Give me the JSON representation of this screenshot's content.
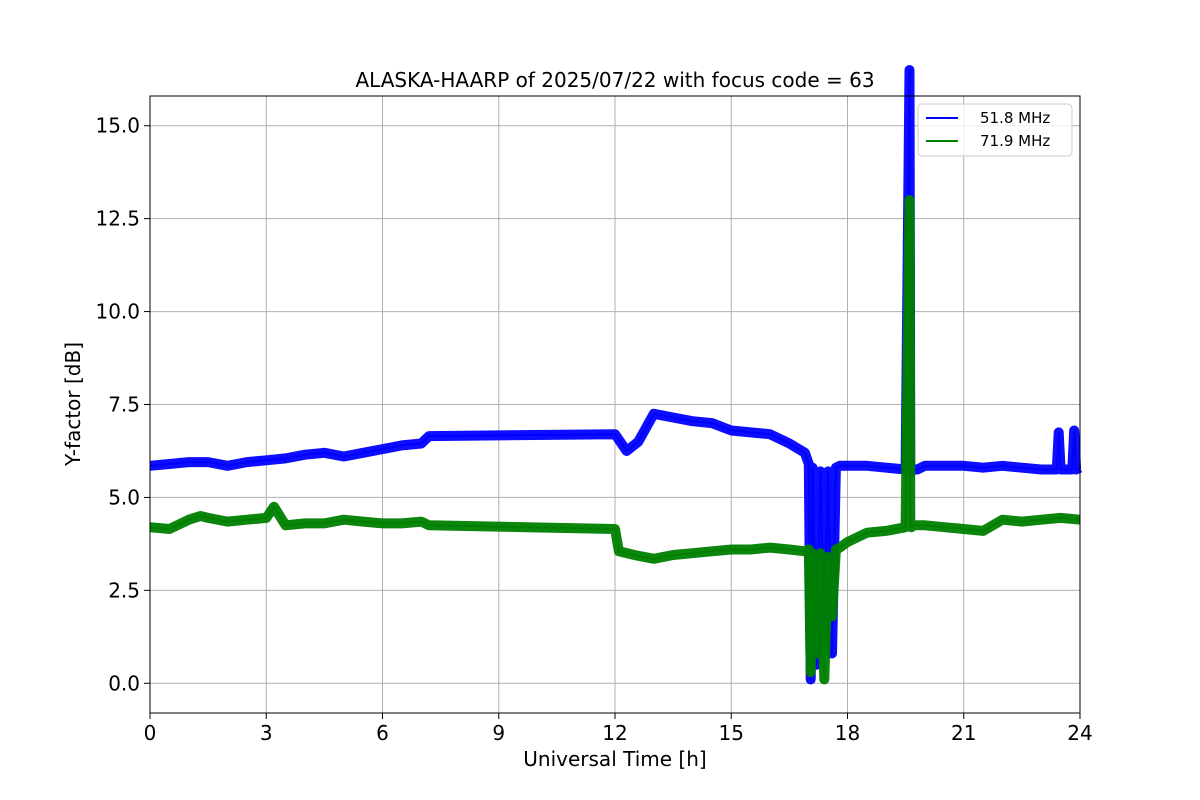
{
  "chart_data": {
    "type": "line",
    "title": "ALASKA-HAARP of 2025/07/22 with focus code = 63",
    "xlabel": "Universal Time [h]",
    "ylabel": "Y-factor [dB]",
    "xlim": [
      0,
      24
    ],
    "ylim": [
      -0.8,
      15.8
    ],
    "xticks": [
      0,
      3,
      6,
      9,
      12,
      15,
      18,
      21,
      24
    ],
    "xtick_labels": [
      "0",
      "3",
      "6",
      "9",
      "12",
      "15",
      "18",
      "21",
      "24"
    ],
    "yticks": [
      0,
      2.5,
      5,
      7.5,
      10,
      12.5,
      15
    ],
    "ytick_labels": [
      "0.0",
      "2.5",
      "5.0",
      "7.5",
      "10.0",
      "12.5",
      "15.0"
    ],
    "grid": true,
    "legend_position": "top-right",
    "series": [
      {
        "name": "51.8 MHz",
        "color": "#0000ff",
        "x": [
          0,
          0.5,
          1,
          1.5,
          2,
          2.5,
          3,
          3.5,
          4,
          4.5,
          5,
          5.5,
          6,
          6.5,
          7,
          7.2,
          12.0,
          12.3,
          12.6,
          13.0,
          13.5,
          14.0,
          14.5,
          15.0,
          15.5,
          16.0,
          16.5,
          16.9,
          17.0,
          17.05,
          17.1,
          17.2,
          17.3,
          17.4,
          17.5,
          17.6,
          17.7,
          17.8,
          18.0,
          18.5,
          19.0,
          19.5,
          19.6,
          19.62,
          19.65,
          19.7,
          19.8,
          20.0,
          20.5,
          21.0,
          21.5,
          22.0,
          22.5,
          23.0,
          23.4,
          23.45,
          23.5,
          23.8,
          23.85,
          23.9,
          24.0
        ],
        "y": [
          5.85,
          5.9,
          5.95,
          5.95,
          5.85,
          5.95,
          6.0,
          6.05,
          6.15,
          6.2,
          6.1,
          6.2,
          6.3,
          6.4,
          6.45,
          6.65,
          6.7,
          6.25,
          6.5,
          7.25,
          7.15,
          7.05,
          7.0,
          6.8,
          6.75,
          6.7,
          6.45,
          6.2,
          5.9,
          0.1,
          5.8,
          0.5,
          5.7,
          1.2,
          5.7,
          0.8,
          5.8,
          5.85,
          5.85,
          5.85,
          5.8,
          5.75,
          16.5,
          5.9,
          5.7,
          5.75,
          5.75,
          5.85,
          5.85,
          5.85,
          5.8,
          5.85,
          5.8,
          5.75,
          5.75,
          6.75,
          5.75,
          5.75,
          6.8,
          5.75,
          5.8
        ]
      },
      {
        "name": "71.9 MHz",
        "color": "#008000",
        "x": [
          0,
          0.5,
          1,
          1.3,
          1.5,
          2,
          2.5,
          3,
          3.2,
          3.5,
          4,
          4.5,
          5,
          5.5,
          6,
          6.5,
          7,
          7.2,
          12.0,
          12.1,
          12.5,
          13.0,
          13.5,
          14.0,
          14.5,
          15.0,
          15.5,
          16.0,
          16.5,
          16.9,
          17.0,
          17.05,
          17.1,
          17.2,
          17.3,
          17.4,
          17.5,
          17.6,
          17.7,
          17.8,
          18.0,
          18.5,
          19.0,
          19.5,
          19.6,
          19.62,
          19.65,
          19.7,
          20.0,
          20.5,
          21.0,
          21.5,
          22.0,
          22.5,
          23.0,
          23.5,
          24.0
        ],
        "y": [
          4.2,
          4.15,
          4.4,
          4.5,
          4.45,
          4.35,
          4.4,
          4.45,
          4.75,
          4.25,
          4.3,
          4.3,
          4.4,
          4.35,
          4.3,
          4.3,
          4.35,
          4.25,
          4.15,
          3.55,
          3.45,
          3.35,
          3.45,
          3.5,
          3.55,
          3.6,
          3.6,
          3.65,
          3.6,
          3.55,
          3.6,
          0.3,
          3.5,
          0.8,
          3.5,
          0.1,
          3.4,
          1.8,
          3.6,
          3.65,
          3.8,
          4.05,
          4.1,
          4.2,
          13.0,
          4.3,
          4.2,
          4.25,
          4.25,
          4.2,
          4.15,
          4.1,
          4.4,
          4.35,
          4.4,
          4.45,
          4.4
        ]
      }
    ]
  }
}
